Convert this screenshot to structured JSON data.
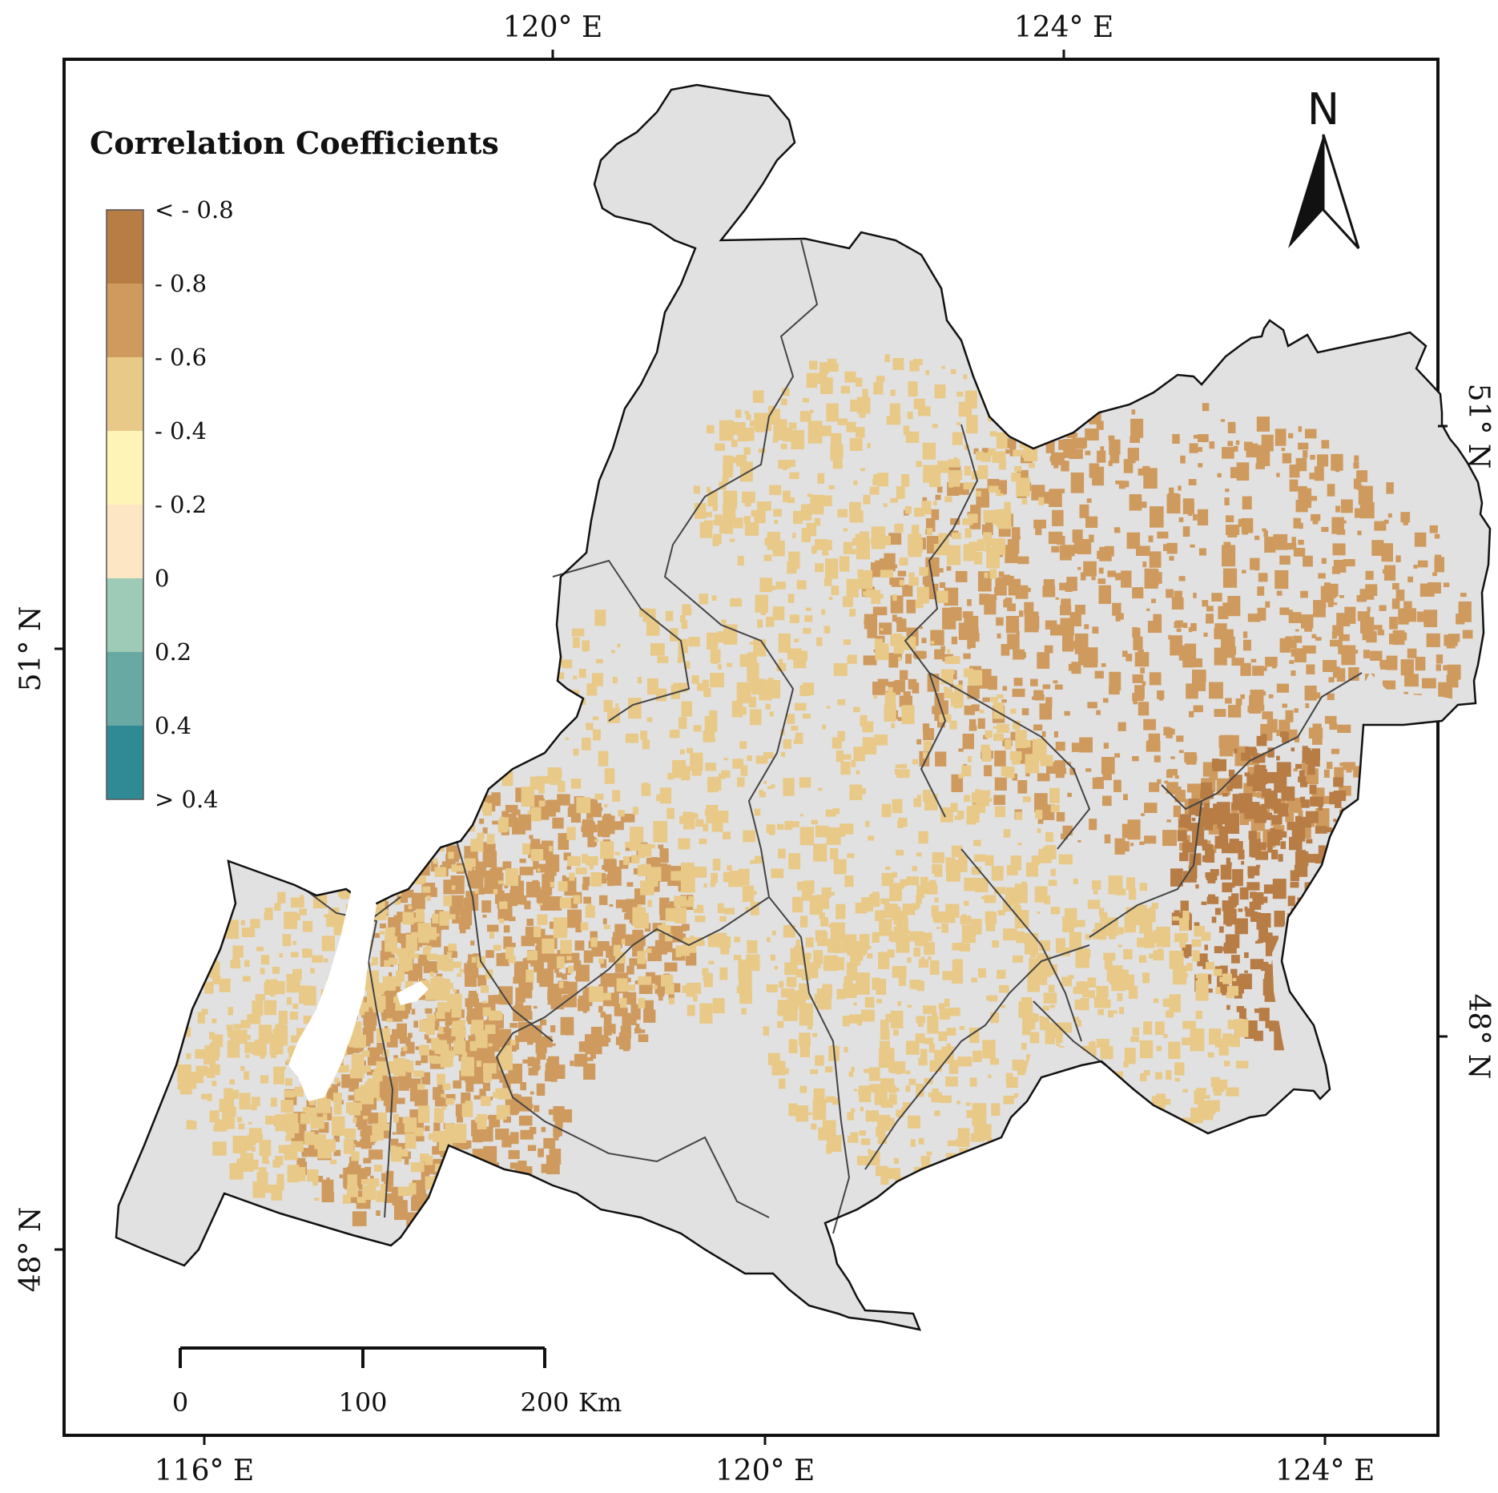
{
  "legend": {
    "title": "Correlation Coefficients",
    "classes": [
      {
        "label": "< - 0.8",
        "color": "#b87c45"
      },
      {
        "label": "- 0.8",
        "color": "#cf9a5d"
      },
      {
        "label": "- 0.6",
        "color": "#e8c987"
      },
      {
        "label": "- 0.4",
        "color": "#fff4b8"
      },
      {
        "label": "- 0.2",
        "color": "#fde6c3"
      },
      {
        "label": "0",
        "color": "#9ecab8"
      },
      {
        "label": "0.2",
        "color": "#68a9a4"
      },
      {
        "label": "0.4",
        "color": "#2f8a96"
      }
    ],
    "last_label": "> 0.4"
  },
  "colors": {
    "land": "#e1e1e1",
    "positive_light": "#e8c987",
    "positive_dark": "#cf9a5d",
    "positive_darkest": "#b87c45",
    "boundary": "#444444",
    "outline": "#111111"
  },
  "axes": {
    "top": [
      "120° E",
      "124° E"
    ],
    "bottom": [
      "116° E",
      "120° E",
      "124° E"
    ],
    "left": [
      "51° N",
      "48° N"
    ],
    "right": [
      "51° N",
      "48° N"
    ]
  },
  "scale_bar": {
    "labels": [
      "0",
      "100",
      "200"
    ],
    "unit": "Km"
  },
  "north_arrow": {
    "label": "N",
    "icon": "north-arrow-icon"
  }
}
